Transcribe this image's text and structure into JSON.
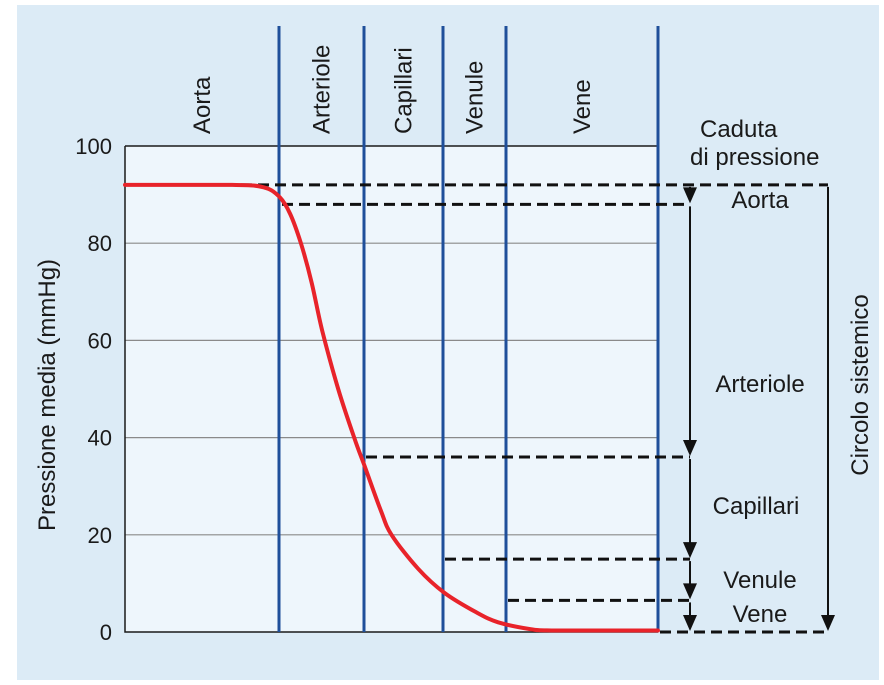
{
  "colors": {
    "outer_background": "#dcebf6",
    "plot_background": "#eef6fc",
    "boundary": "#1f4f9a",
    "grid": "#8a8a8a",
    "curve": "#e8232a",
    "dashed": "#111111"
  },
  "chart_data": {
    "type": "line",
    "title": "",
    "xlabel": "",
    "ylabel": "Pressione media (mmHg)",
    "ylim": [
      0,
      100
    ],
    "yticks": [
      "0",
      "20",
      "40",
      "60",
      "80",
      "100"
    ],
    "grid": true,
    "segments": [
      "Aorta",
      "Arteriole",
      "Capillari",
      "Venule",
      "Vene"
    ],
    "series": [
      {
        "name": "",
        "x": [
          0,
          0.2,
          0.26,
          0.29,
          0.31,
          0.33,
          0.35,
          0.37,
          0.4,
          0.43,
          0.45,
          0.48,
          0.5,
          0.55,
          0.6,
          0.66,
          0.7,
          0.76,
          0.8,
          0.9,
          1.0
        ],
        "y": [
          92,
          92,
          91.5,
          89.5,
          86,
          80,
          72,
          62,
          50,
          40,
          34,
          25,
          20,
          13,
          8,
          4,
          2,
          0.6,
          0.3,
          0.3,
          0.3
        ]
      }
    ],
    "drop_levels": [
      92,
      88,
      36,
      15,
      6.5,
      0
    ],
    "drop_annotation": {
      "header_line1": "Caduta",
      "header_line2": "di pressione",
      "labels": [
        "Aorta",
        "Arteriole",
        "Capillari",
        "Venule",
        "Vene"
      ],
      "total_label": "Circolo sistemico"
    }
  }
}
